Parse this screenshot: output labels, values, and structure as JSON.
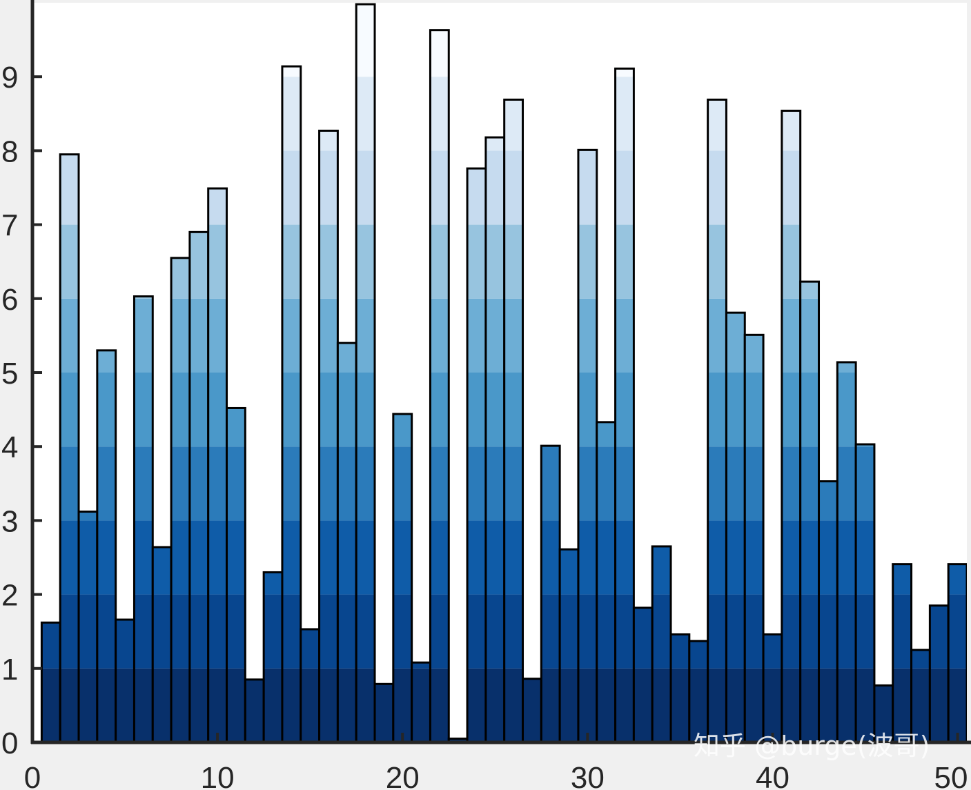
{
  "chart_data": {
    "type": "bar",
    "style": "gradient-stacked-banded",
    "x": [
      1,
      2,
      3,
      4,
      5,
      6,
      7,
      8,
      9,
      10,
      11,
      12,
      13,
      14,
      15,
      16,
      17,
      18,
      19,
      20,
      21,
      22,
      23,
      24,
      25,
      26,
      27,
      28,
      29,
      30,
      31,
      32,
      33,
      34,
      35,
      36,
      37,
      38,
      39,
      40,
      41,
      42,
      43,
      44,
      45,
      46,
      47,
      48,
      49,
      50
    ],
    "values": [
      1.62,
      7.95,
      3.12,
      5.3,
      1.66,
      6.03,
      2.64,
      6.55,
      6.9,
      7.49,
      4.52,
      0.85,
      2.3,
      9.14,
      1.53,
      8.27,
      5.4,
      9.98,
      0.79,
      4.44,
      1.08,
      9.63,
      0.05,
      7.76,
      8.18,
      8.69,
      0.86,
      4.01,
      2.61,
      8.01,
      4.33,
      9.11,
      1.82,
      2.65,
      1.46,
      1.37,
      8.69,
      5.81,
      5.51,
      1.46,
      8.54,
      6.23,
      3.53,
      5.14,
      4.03,
      0.77,
      2.41,
      1.25,
      1.85,
      2.41
    ],
    "xlim": [
      0,
      50.5
    ],
    "ylim": [
      0,
      10
    ],
    "xticks": [
      0,
      10,
      20,
      30,
      40,
      50
    ],
    "yticks": [
      0,
      1,
      2,
      3,
      4,
      5,
      6,
      7,
      8,
      9
    ],
    "xlabel": "",
    "ylabel": "",
    "title": "",
    "grid": false,
    "band_colors": [
      "#08306b",
      "#08468f",
      "#0f5ca8",
      "#2b7bba",
      "#4a98c9",
      "#6daed5",
      "#97c4df",
      "#c6dbef",
      "#ddeaf6",
      "#f7fbff"
    ],
    "axis_color": "#262626",
    "plot_background": "#ffffff",
    "page_background": "#f0f0f0"
  },
  "watermark": {
    "text": "知乎 @burge(波哥)"
  }
}
